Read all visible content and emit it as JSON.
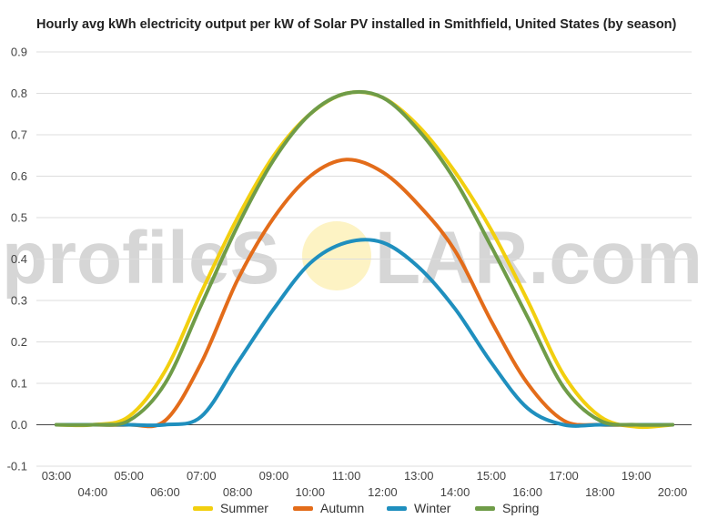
{
  "title": "Hourly avg kWh electricity output per kW of Solar PV installed in Smithfield, United States (by season)",
  "watermark": {
    "text_left": "profileS",
    "text_right": "LAR.com",
    "color": "#d6d6d6",
    "sun_color": "#fdf3c4"
  },
  "chart_data": {
    "type": "line",
    "title": "Hourly avg kWh electricity output per kW of Solar PV installed in Smithfield, United States (by season)",
    "xlabel": "",
    "ylabel": "",
    "x": [
      "03:00",
      "04:00",
      "05:00",
      "06:00",
      "07:00",
      "08:00",
      "09:00",
      "10:00",
      "11:00",
      "12:00",
      "13:00",
      "14:00",
      "15:00",
      "16:00",
      "17:00",
      "18:00",
      "19:00",
      "20:00"
    ],
    "ylim": [
      -0.1,
      0.9
    ],
    "yticks": [
      "-0.1",
      "0.0",
      "0.1",
      "0.2",
      "0.3",
      "0.4",
      "0.5",
      "0.6",
      "0.7",
      "0.8",
      "0.9"
    ],
    "grid": true,
    "legend_position": "bottom",
    "series": [
      {
        "name": "Summer",
        "color": "#f2cf0f",
        "values": [
          0.0,
          0.0,
          0.02,
          0.13,
          0.32,
          0.5,
          0.65,
          0.75,
          0.8,
          0.79,
          0.72,
          0.61,
          0.47,
          0.3,
          0.12,
          0.02,
          -0.005,
          0.0
        ]
      },
      {
        "name": "Autumn",
        "color": "#e36c1a",
        "values": [
          0.0,
          0.0,
          0.0,
          0.01,
          0.15,
          0.35,
          0.5,
          0.6,
          0.64,
          0.61,
          0.53,
          0.42,
          0.25,
          0.1,
          0.01,
          0.0,
          0.0,
          0.0
        ]
      },
      {
        "name": "Winter",
        "color": "#1f8fbe",
        "values": [
          0.0,
          0.0,
          0.0,
          0.0,
          0.02,
          0.15,
          0.28,
          0.39,
          0.44,
          0.44,
          0.38,
          0.28,
          0.15,
          0.04,
          0.0,
          0.0,
          0.0,
          0.0
        ]
      },
      {
        "name": "Spring",
        "color": "#6f9c48",
        "values": [
          0.0,
          0.0,
          0.01,
          0.1,
          0.29,
          0.48,
          0.64,
          0.75,
          0.8,
          0.79,
          0.71,
          0.59,
          0.43,
          0.26,
          0.09,
          0.01,
          0.0,
          0.0
        ]
      }
    ]
  }
}
